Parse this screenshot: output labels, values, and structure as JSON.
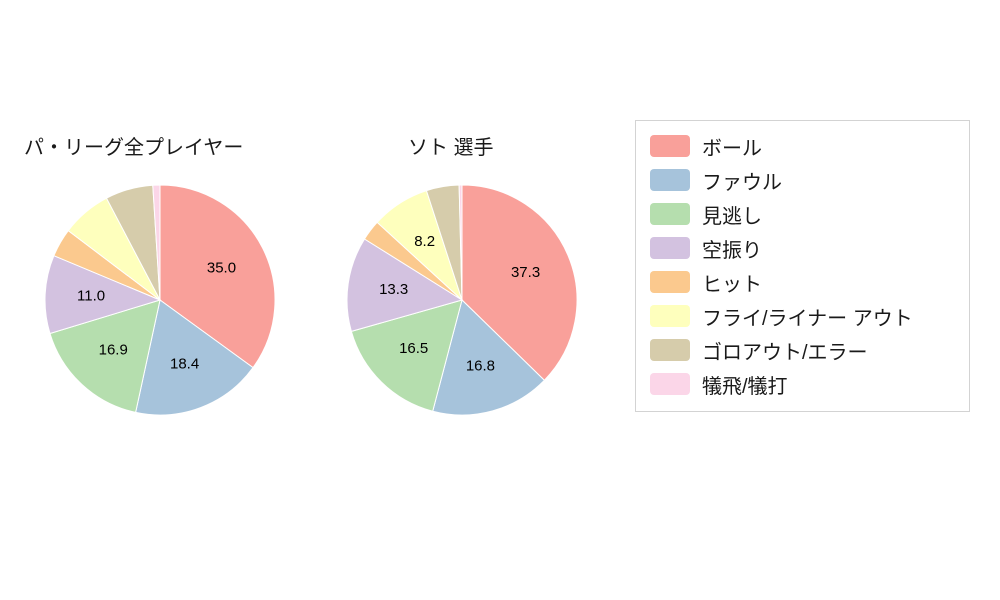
{
  "chart_data": [
    {
      "type": "pie",
      "title": "パ・リーグ全プレイヤー",
      "labels": [
        "ボール",
        "ファウル",
        "見逃し",
        "空振り",
        "ヒット",
        "フライ/ライナー アウト",
        "ゴロアウト/エラー",
        "犠飛/犠打"
      ],
      "values": [
        35.0,
        18.4,
        16.9,
        11.0,
        4.0,
        7.0,
        6.7,
        1.0
      ],
      "value_labels": [
        "35.0",
        "18.4",
        "16.9",
        "11.0",
        "",
        "",
        "",
        ""
      ],
      "colors": [
        "#f9a09a",
        "#a6c3db",
        "#b5deae",
        "#d3c2e0",
        "#fbc98e",
        "#feffbd",
        "#d6ccab",
        "#fbd6e8"
      ],
      "start_angle": "top",
      "direction": "clockwise",
      "legend_position": "right"
    },
    {
      "type": "pie",
      "title": "ソト  選手",
      "labels": [
        "ボール",
        "ファウル",
        "見逃し",
        "空振り",
        "ヒット",
        "フライ/ライナー アウト",
        "ゴロアウト/エラー",
        "犠飛/犠打"
      ],
      "values": [
        37.3,
        16.8,
        16.5,
        13.3,
        2.9,
        8.2,
        4.6,
        0.4
      ],
      "value_labels": [
        "37.3",
        "16.8",
        "16.5",
        "13.3",
        "",
        "8.2",
        "",
        ""
      ],
      "colors": [
        "#f9a09a",
        "#a6c3db",
        "#b5deae",
        "#d3c2e0",
        "#fbc98e",
        "#feffbd",
        "#d6ccab",
        "#fbd6e8"
      ],
      "start_angle": "top",
      "direction": "clockwise",
      "legend_position": "right"
    }
  ],
  "legend": {
    "items": [
      {
        "label": "ボール",
        "color": "#f9a09a"
      },
      {
        "label": "ファウル",
        "color": "#a6c3db"
      },
      {
        "label": "見逃し",
        "color": "#b5deae"
      },
      {
        "label": "空振り",
        "color": "#d3c2e0"
      },
      {
        "label": "ヒット",
        "color": "#fbc98e"
      },
      {
        "label": "フライ/ライナー アウト",
        "color": "#feffbd"
      },
      {
        "label": "ゴロアウト/エラー",
        "color": "#d6ccab"
      },
      {
        "label": "犠飛/犠打",
        "color": "#fbd6e8"
      }
    ]
  }
}
